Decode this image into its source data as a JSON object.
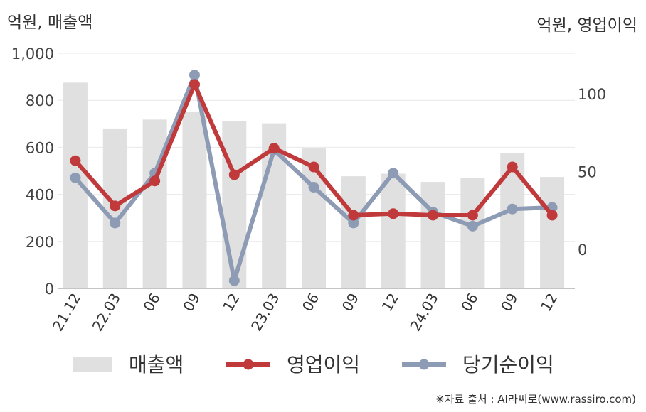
{
  "left_unit": "억원, 매출액",
  "right_unit": "억원, 영업이익",
  "source": "※자료 출처 : AI라씨로(www.rassiro.com)",
  "chart_data": {
    "type": "bar",
    "categories": [
      "21.12",
      "22.03",
      "06",
      "09",
      "12",
      "23.03",
      "06",
      "09",
      "12",
      "24.03",
      "06",
      "09",
      "12"
    ],
    "ylim_left": [
      0,
      1000
    ],
    "ylim_right": [
      -25,
      126
    ],
    "yticks_left": [
      "0",
      "200",
      "400",
      "600",
      "800",
      "1,000"
    ],
    "yticks_right": [
      "0",
      "50",
      "100"
    ],
    "legend_position": "bottom",
    "series": [
      {
        "name": "매출액",
        "type": "bar",
        "axis": "left",
        "color": "#e0e0e0",
        "values": [
          875,
          680,
          718,
          752,
          712,
          702,
          595,
          477,
          488,
          453,
          470,
          576,
          474
        ]
      },
      {
        "name": "영업이익",
        "type": "line",
        "axis": "right",
        "color": "#c0393b",
        "values": [
          57,
          28,
          44,
          106,
          48,
          65,
          53,
          22,
          23,
          22,
          22,
          53,
          22
        ]
      },
      {
        "name": "당기순이익",
        "type": "line",
        "axis": "right",
        "color": "#8e9bb5",
        "values": [
          46,
          17,
          49,
          112,
          -20,
          64,
          40,
          17,
          49,
          24,
          15,
          26,
          27
        ]
      }
    ]
  }
}
